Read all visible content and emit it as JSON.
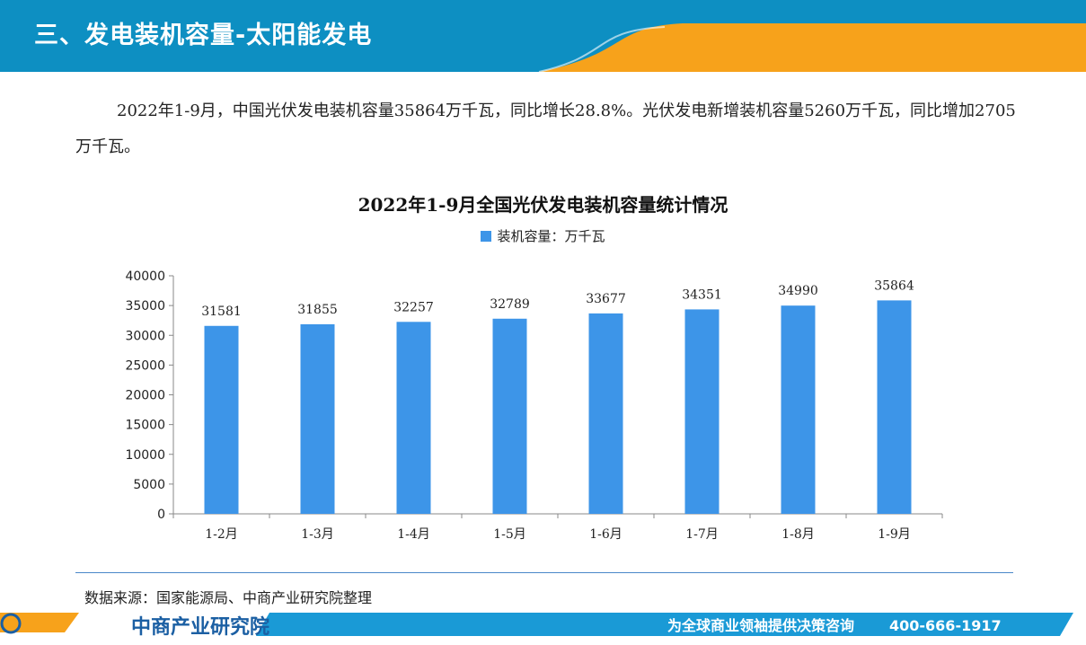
{
  "header": {
    "title": "三、发电装机容量-太阳能发电"
  },
  "paragraph": "2022年1-9月，中国光伏发电装机容量35864万千瓦，同比增长28.8%。光伏发电新增装机容量5260万千瓦，同比增加2705万千瓦。",
  "source": "数据来源：国家能源局、中商产业研究院整理",
  "footer": {
    "logo": "中商产业研究院",
    "slogan": "为全球商业领袖提供决策咨询",
    "phone": "400-666-1917"
  },
  "colors": {
    "header_blue": "#0d8fc2",
    "accent_orange": "#f7a21b",
    "bar": "#3d95e8",
    "footer_blue": "#1a9ad6"
  },
  "chart_data": {
    "type": "bar",
    "title": "2022年1-9月全国光伏发电装机容量统计情况",
    "categories": [
      "1-2月",
      "1-3月",
      "1-4月",
      "1-5月",
      "1-6月",
      "1-7月",
      "1-8月",
      "1-9月"
    ],
    "series": [
      {
        "name": "装机容量：万千瓦",
        "values": [
          31581,
          31855,
          32257,
          32789,
          33677,
          34351,
          34990,
          35864
        ]
      }
    ],
    "ylim": [
      0,
      40000
    ],
    "yticks": [
      0,
      5000,
      10000,
      15000,
      20000,
      25000,
      30000,
      35000,
      40000
    ],
    "legend": "top",
    "grid": false,
    "data_labels": true
  }
}
